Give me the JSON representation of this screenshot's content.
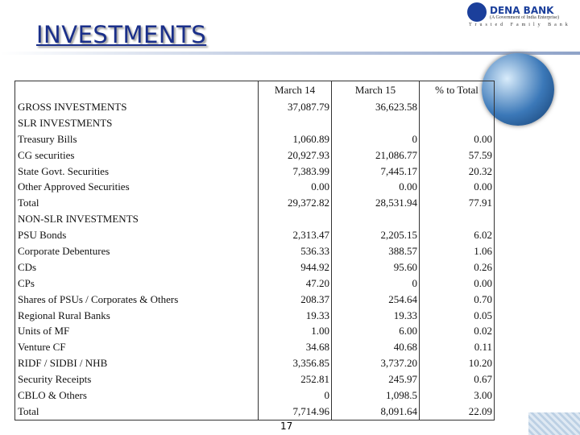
{
  "header": {
    "title": "INVESTMENTS",
    "logo": {
      "name": "DENA BANK",
      "subtitle": "(A Government of India Enterprise)",
      "tagline": "Trusted Family Bank"
    }
  },
  "table": {
    "columns": [
      "March 14",
      "March 15",
      "% to Total"
    ],
    "rows": [
      {
        "label": "GROSS INVESTMENTS",
        "march14": "37,087.79",
        "march15": "36,623.58"
      },
      {
        "label": "SLR INVESTMENTS"
      },
      {
        "label": "Treasury Bills",
        "march14": "1,060.89",
        "march15": "0",
        "share": "0.00"
      },
      {
        "label": "CG securities",
        "march14": "20,927.93",
        "march15": "21,086.77",
        "share": "57.59"
      },
      {
        "label": "State Govt. Securities",
        "march14": "7,383.99",
        "march15": "7,445.17",
        "share": "20.32"
      },
      {
        "label": "Other Approved Securities",
        "march14": "0.00",
        "march15": "0.00",
        "share": "0.00"
      },
      {
        "label": "Total",
        "march14": "29,372.82",
        "march15": "28,531.94",
        "share": "77.91"
      },
      {
        "label": "NON-SLR INVESTMENTS"
      },
      {
        "label": "PSU  Bonds",
        "march14": "2,313.47",
        "march15": "2,205.15",
        "share": "6.02"
      },
      {
        "label": "Corporate Debentures",
        "march14": "536.33",
        "march15": "388.57",
        "share": "1.06"
      },
      {
        "label": "CDs",
        "march14": "944.92",
        "march15": "95.60",
        "share": "0.26"
      },
      {
        "label": "CPs",
        "march14": "47.20",
        "march15": "0",
        "share": "0.00"
      },
      {
        "label": "Shares of  PSUs / Corporates & Others",
        "march14": "208.37",
        "march15": "254.64",
        "share": "0.70"
      },
      {
        "label": "Regional Rural Banks",
        "march14": "19.33",
        "march15": "19.33",
        "share": "0.05"
      },
      {
        "label": "Units of MF",
        "march14": "1.00",
        "march15": "6.00",
        "share": "0.02"
      },
      {
        "label": "Venture CF",
        "march14": "34.68",
        "march15": "40.68",
        "share": "0.11"
      },
      {
        "label": "RIDF / SIDBI / NHB",
        "march14": "3,356.85",
        "march15": "3,737.20",
        "share": "10.20"
      },
      {
        "label": "Security Receipts",
        "march14": "252.81",
        "march15": "245.97",
        "share": "0.67"
      },
      {
        "label": "CBLO & Others",
        "march14": "0",
        "march15": "1,098.5",
        "share": "3.00"
      },
      {
        "label": "Total",
        "march14": "7,714.96",
        "march15": "8,091.64",
        "share": "22.09"
      }
    ]
  },
  "footer": {
    "page": "17"
  }
}
